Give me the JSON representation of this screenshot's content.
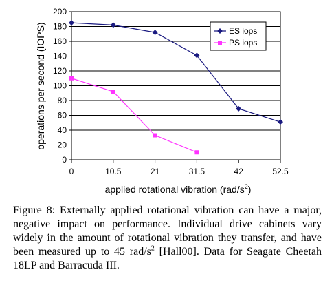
{
  "chart_data": {
    "type": "line",
    "categories": [
      "0",
      "10.5",
      "21",
      "31.5",
      "42",
      "52.5"
    ],
    "series": [
      {
        "name": "ES iops",
        "color": "#1a1a80",
        "marker": "diamond",
        "values": [
          185,
          182,
          172,
          141,
          69,
          51
        ]
      },
      {
        "name": "PS iops",
        "color": "#ff33ff",
        "marker": "square",
        "values": [
          110,
          92,
          33,
          10,
          null,
          null
        ]
      }
    ],
    "ylabel": "operations per second (IOPS)",
    "xlabel_main": "applied rotational vibration (rad/s",
    "xlabel_sup": "2",
    "xlabel_end": ")",
    "ylim": [
      0,
      200
    ],
    "yticks": [
      0,
      20,
      40,
      60,
      80,
      100,
      120,
      140,
      160,
      180,
      200
    ],
    "grid": "horizontal",
    "legend_position": "top-right"
  },
  "caption": {
    "text_before_sup": "Figure 8: Externally applied rotational vibration can have a major, negative impact on performance. Individual drive cabinets vary widely in the amount of rotational vibration they transfer, and have been measured up to 45 rad/s",
    "sup": "2",
    "text_after_sup": " [Hall00]. Data for Seagate Cheetah 18LP and Barracuda III."
  }
}
